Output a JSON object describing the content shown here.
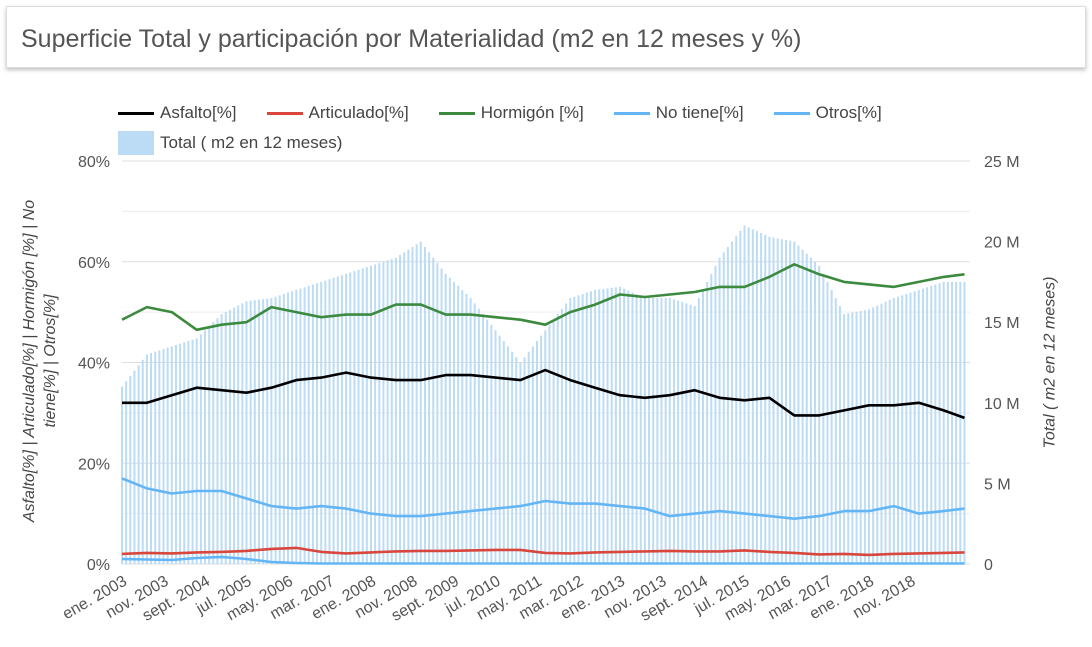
{
  "header": {
    "title": "Superficie Total y participación por Materialidad (m2 en 12 meses y %)"
  },
  "chart_data": {
    "type": "bar+line",
    "legend_position": "top",
    "grid": true,
    "x": [
      "2003-01",
      "2003-07",
      "2004-01",
      "2004-07",
      "2005-01",
      "2005-07",
      "2006-01",
      "2006-07",
      "2007-01",
      "2007-07",
      "2008-01",
      "2008-07",
      "2009-01",
      "2009-07",
      "2010-01",
      "2010-07",
      "2011-01",
      "2011-07",
      "2012-01",
      "2012-07",
      "2013-01",
      "2013-07",
      "2014-01",
      "2014-07",
      "2015-01",
      "2015-07",
      "2016-01",
      "2016-07",
      "2017-01",
      "2017-07",
      "2018-01",
      "2018-07",
      "2019-01",
      "2019-07",
      "2019-12"
    ],
    "x_tick_labels": [
      "ene. 2003",
      "nov. 2003",
      "sept. 2004",
      "jul. 2005",
      "may. 2006",
      "mar. 2007",
      "ene. 2008",
      "nov. 2008",
      "sept. 2009",
      "jul. 2010",
      "may. 2011",
      "mar. 2012",
      "ene. 2013",
      "nov. 2013",
      "sept. 2014",
      "jul. 2015",
      "may. 2016",
      "mar. 2017",
      "ene. 2018",
      "nov. 2018"
    ],
    "y_left": {
      "label": "Asfalto[%] | Articulado[%] | Hormigón [%] | No tiene[%] | Otros[%]",
      "ticks": [
        "0%",
        "20%",
        "40%",
        "60%",
        "80%"
      ],
      "range": [
        0,
        80
      ]
    },
    "y_right": {
      "label": "Total ( m2 en 12 meses)",
      "ticks": [
        "0",
        "5 M",
        "10 M",
        "15 M",
        "20 M",
        "25 M"
      ],
      "range": [
        0,
        25
      ]
    },
    "bars": {
      "name": "Total ( m2 en 12 meses)",
      "color": "#bcdcf5",
      "unit": "M m2",
      "values": [
        11,
        13,
        13.5,
        14,
        15.5,
        16.3,
        16.5,
        17,
        17.5,
        18,
        18.5,
        19,
        20,
        18,
        16.5,
        14.5,
        12.5,
        14.5,
        16.5,
        17,
        17.2,
        16.5,
        16.5,
        16,
        19,
        21,
        20.3,
        20,
        18.5,
        15.5,
        15.8,
        16.5,
        17,
        17.5,
        17.5
      ]
    },
    "series": [
      {
        "name": "Asfalto[%]",
        "color": "#000000",
        "values": [
          32,
          32,
          33.5,
          35,
          34.5,
          34,
          35,
          36.5,
          37,
          38,
          37,
          36.5,
          36.5,
          37.5,
          37.5,
          37,
          36.5,
          38.5,
          36.5,
          35,
          33.5,
          33,
          33.5,
          34.5,
          33,
          32.5,
          33,
          29.5,
          29.5,
          30.5,
          31.5,
          31.5,
          32,
          30.5,
          29
        ]
      },
      {
        "name": "Articulado[%]",
        "color": "#d9473c",
        "values": [
          2,
          2.2,
          2.1,
          2.3,
          2.4,
          2.6,
          3,
          3.2,
          2.4,
          2.1,
          2.3,
          2.5,
          2.6,
          2.6,
          2.7,
          2.8,
          2.8,
          2.2,
          2.1,
          2.3,
          2.4,
          2.5,
          2.6,
          2.5,
          2.5,
          2.7,
          2.4,
          2.2,
          1.9,
          2,
          1.8,
          2,
          2.1,
          2.2,
          2.3
        ]
      },
      {
        "name": "Hormigón [%]",
        "color": "#3b8a3e",
        "values": [
          48.5,
          51,
          50,
          46.5,
          47.5,
          48,
          51,
          50,
          49,
          49.5,
          49.5,
          51.5,
          51.5,
          49.5,
          49.5,
          49,
          48.5,
          47.5,
          50,
          51.5,
          53.5,
          53,
          53.5,
          54,
          55,
          55,
          57,
          59.5,
          57.5,
          56,
          55.5,
          55,
          56,
          57,
          57.5
        ]
      },
      {
        "name": "No tiene[%]",
        "color": "#64b5f6",
        "values": [
          17,
          15,
          14,
          14.5,
          14.5,
          13,
          11.5,
          11,
          11.5,
          11,
          10,
          9.5,
          9.5,
          10,
          10.5,
          11,
          11.5,
          12.5,
          12,
          12,
          11.5,
          11,
          9.5,
          10,
          10.5,
          10,
          9.5,
          9,
          9.5,
          10.5,
          10.5,
          11.5,
          10,
          10.5,
          11
        ]
      },
      {
        "name": "Otros[%]",
        "color": "#64b5f6",
        "values": [
          1,
          0.9,
          0.8,
          1.2,
          1.4,
          1,
          0.4,
          0.2,
          0.1,
          0.1,
          0.1,
          0.1,
          0.1,
          0.1,
          0.1,
          0.1,
          0.1,
          0.1,
          0.1,
          0.1,
          0.1,
          0.1,
          0.1,
          0.1,
          0.1,
          0.1,
          0.1,
          0.1,
          0.1,
          0.1,
          0.1,
          0.1,
          0.1,
          0.1,
          0.1
        ]
      }
    ]
  }
}
